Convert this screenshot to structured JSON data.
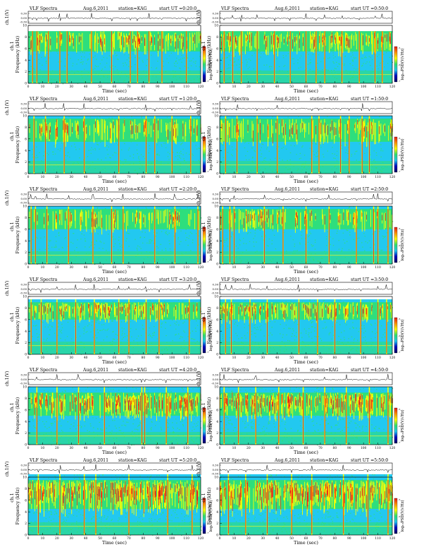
{
  "chart_data": {
    "type": "heatmap",
    "colors": {
      "background": "#22c8f0",
      "low": "#30e070",
      "mid": "#ffff00",
      "high": "#e81818",
      "colorbar_stops": [
        "#e81818",
        "#ff9000",
        "#ffff00",
        "#30e070",
        "#22c8f0",
        "#0000c0",
        "#000060"
      ]
    },
    "panels": [
      {
        "title": "VLF Spectra",
        "date": "Aug.6,2011",
        "station": "station=KAG",
        "start": "start UT =0:20:0",
        "ch_label": "ch.1(V)",
        "ch_ticks": [
          "0.30",
          "0.00",
          "-0.30"
        ],
        "xlabel": "Time (sec)",
        "ylabel": "Frequency (kHz)",
        "ylabel_ch": "ch.1",
        "colorbar_label": "log₁₀PSD(V/√Hz)",
        "colorbar_ticks": [
          "-5",
          "-6",
          "-7"
        ],
        "xlim": [
          0,
          120
        ],
        "ylim": [
          0,
          10
        ],
        "fmax_khz": 9.0,
        "xticks": [
          "0",
          "10",
          "20",
          "30",
          "40",
          "50",
          "60",
          "70",
          "80",
          "90",
          "100",
          "110",
          "120"
        ],
        "yticks": [
          "0",
          "2",
          "4",
          "6",
          "8",
          "10"
        ],
        "activity": 0.55,
        "noise": 0.5,
        "band_khz": [
          5.5,
          9.0
        ],
        "spikes_sec": [
          3,
          6,
          14,
          22,
          27,
          44,
          58,
          71,
          76,
          84,
          93,
          110
        ],
        "seed": 11
      },
      {
        "title": "VLF Spectra",
        "date": "Aug.6,2011",
        "station": "station=KAG",
        "start": "start UT =0:50:0",
        "ch_label": "ch.1(V)",
        "ch_ticks": [
          "0.30",
          "0.00",
          "-0.30"
        ],
        "xlabel": "Time (sec)",
        "ylabel": "Frequency (kHz)",
        "ylabel_ch": "ch.1",
        "colorbar_label": "log₁₀PSD(V/√Hz)",
        "colorbar_ticks": [
          "-5",
          "-6",
          "-7"
        ],
        "xlim": [
          0,
          120
        ],
        "ylim": [
          0,
          10
        ],
        "fmax_khz": 9.0,
        "xticks": [
          "0",
          "10",
          "20",
          "30",
          "40",
          "50",
          "60",
          "70",
          "80",
          "90",
          "100",
          "110",
          "120"
        ],
        "yticks": [
          "0",
          "2",
          "4",
          "6",
          "8",
          "10"
        ],
        "activity": 0.58,
        "noise": 0.5,
        "band_khz": [
          5.5,
          9.0
        ],
        "spikes_sec": [
          3,
          9,
          15,
          26,
          38,
          49,
          60,
          67,
          73,
          85,
          97,
          108,
          113
        ],
        "seed": 23
      },
      {
        "title": "VLF Spectra",
        "date": "Aug.6,2011",
        "station": "station=KAG",
        "start": "start UT =1:20:0",
        "ch_label": "ch.1(V)",
        "ch_ticks": [
          "0.30",
          "0.00",
          "-0.30"
        ],
        "xlabel": "Time (sec)",
        "ylabel": "Frequency (kHz)",
        "ylabel_ch": "ch.1",
        "colorbar_label": "log₁₀PSD(V/√Hz)",
        "colorbar_ticks": [
          "-5",
          "-6",
          "-7"
        ],
        "xlim": [
          0,
          120
        ],
        "ylim": [
          0,
          10
        ],
        "fmax_khz": 10.0,
        "xticks": [
          "0",
          "10",
          "20",
          "30",
          "40",
          "50",
          "60",
          "70",
          "80",
          "90",
          "100",
          "110",
          "120"
        ],
        "yticks": [
          "0",
          "2",
          "4",
          "6",
          "8",
          "10"
        ],
        "activity": 0.45,
        "noise": 0.52,
        "band_khz": [
          5.5,
          9.5
        ],
        "spikes_sec": [
          4,
          12,
          25,
          39,
          63,
          82,
          88,
          100,
          113
        ],
        "seed": 37
      },
      {
        "title": "VLF Spectra",
        "date": "Aug.6,2011",
        "station": "station=KAG",
        "start": "start UT =1:50:0",
        "ch_label": "ch.1(V)",
        "ch_ticks": [
          "0.30",
          "0.00",
          "-0.30"
        ],
        "xlabel": "Time (sec)",
        "ylabel": "Frequency (kHz)",
        "ylabel_ch": "ch.1",
        "colorbar_label": "log₁₀PSD(V/√Hz)",
        "colorbar_ticks": [
          "-5",
          "-6",
          "-7"
        ],
        "xlim": [
          0,
          120
        ],
        "ylim": [
          0,
          10
        ],
        "fmax_khz": 10.0,
        "xticks": [
          "0",
          "10",
          "20",
          "30",
          "40",
          "50",
          "60",
          "70",
          "80",
          "90",
          "100",
          "110",
          "120"
        ],
        "yticks": [
          "0",
          "2",
          "4",
          "6",
          "8",
          "10"
        ],
        "activity": 0.48,
        "noise": 0.52,
        "band_khz": [
          5.5,
          9.5
        ],
        "spikes_sec": [
          4,
          12,
          26,
          40,
          64,
          69,
          84,
          90,
          99,
          104
        ],
        "seed": 41
      },
      {
        "title": "VLF Spectra",
        "date": "Aug.6,2011",
        "station": "station=KAG",
        "start": "start UT =2:20:0",
        "ch_label": "ch.1(V)",
        "ch_ticks": [
          "0.30",
          "0.00",
          "-0.30"
        ],
        "xlabel": "Time (sec)",
        "ylabel": "Frequency (kHz)",
        "ylabel_ch": "ch.1",
        "colorbar_label": "log₁₀PSD(V/√Hz)",
        "colorbar_ticks": [
          "-5",
          "-6",
          "-7"
        ],
        "xlim": [
          0,
          120
        ],
        "ylim": [
          0,
          10
        ],
        "fmax_khz": 10.0,
        "xticks": [
          "0",
          "10",
          "20",
          "30",
          "40",
          "50",
          "60",
          "70",
          "80",
          "90",
          "100",
          "110",
          "120"
        ],
        "yticks": [
          "0",
          "2",
          "4",
          "6",
          "8",
          "10"
        ],
        "activity": 0.4,
        "noise": 0.45,
        "band_khz": [
          6.0,
          9.5
        ],
        "spikes_sec": [
          2,
          5,
          13,
          28,
          45,
          58,
          66,
          88,
          102,
          118
        ],
        "seed": 53
      },
      {
        "title": "VLF Spectra",
        "date": "Aug.6,2011",
        "station": "station=KAG",
        "start": "start UT =2:50:0",
        "ch_label": "ch.1(V)",
        "ch_ticks": [
          "0.30",
          "0.00",
          "-0.30"
        ],
        "xlabel": "Time (sec)",
        "ylabel": "Frequency (kHz)",
        "ylabel_ch": "ch.1",
        "colorbar_label": "log₁₀PSD(V/√Hz)",
        "colorbar_ticks": [
          "-5",
          "-6",
          "-7"
        ],
        "xlim": [
          0,
          120
        ],
        "ylim": [
          0,
          10
        ],
        "fmax_khz": 10.0,
        "xticks": [
          "0",
          "10",
          "20",
          "30",
          "40",
          "50",
          "60",
          "70",
          "80",
          "90",
          "100",
          "110",
          "120"
        ],
        "yticks": [
          "0",
          "2",
          "4",
          "6",
          "8",
          "10"
        ],
        "activity": 0.42,
        "noise": 0.45,
        "band_khz": [
          6.0,
          9.5
        ],
        "spikes_sec": [
          2,
          7,
          10,
          31,
          44,
          60,
          76,
          95,
          107,
          110,
          117
        ],
        "seed": 67
      },
      {
        "title": "VLF Spectra",
        "date": "Aug.6,2011",
        "station": "station=KAG",
        "start": "start UT =3:20:0",
        "ch_label": "ch.1(V)",
        "ch_ticks": [
          "0.30",
          "0.00",
          "-0.30"
        ],
        "xlabel": "Time (sec)",
        "ylabel": "Frequency (kHz)",
        "ylabel_ch": "ch.1",
        "colorbar_label": "log₁₀PSD(V/√Hz)",
        "colorbar_ticks": [
          "-5",
          "-6",
          "-7"
        ],
        "xlim": [
          0,
          120
        ],
        "ylim": [
          0,
          10
        ],
        "fmax_khz": 9.5,
        "xticks": [
          "0",
          "10",
          "20",
          "30",
          "40",
          "50",
          "60",
          "70",
          "80",
          "90",
          "100",
          "110",
          "120"
        ],
        "yticks": [
          "0",
          "2",
          "4",
          "6",
          "8",
          "10"
        ],
        "activity": 0.62,
        "noise": 0.55,
        "band_khz": [
          6.0,
          9.0
        ],
        "spikes_sec": [
          2,
          9,
          20,
          33,
          46,
          63,
          70,
          82,
          91,
          112
        ],
        "seed": 79
      },
      {
        "title": "VLF Spectra",
        "date": "Aug.6,2011",
        "station": "station=KAG",
        "start": "start UT =3:50:0",
        "ch_label": "ch.1(V)",
        "ch_ticks": [
          "0.30",
          "0.00",
          "-0.30"
        ],
        "xlabel": "Time (sec)",
        "ylabel": "Frequency (kHz)",
        "ylabel_ch": "ch.1",
        "colorbar_label": "log₁₀PSD(V/√Hz)",
        "colorbar_ticks": [
          "-5",
          "-6",
          "-7"
        ],
        "xlim": [
          0,
          120
        ],
        "ylim": [
          0,
          10
        ],
        "fmax_khz": 9.5,
        "xticks": [
          "0",
          "10",
          "20",
          "30",
          "40",
          "50",
          "60",
          "70",
          "80",
          "90",
          "100",
          "110",
          "120"
        ],
        "yticks": [
          "0",
          "2",
          "4",
          "6",
          "8",
          "10"
        ],
        "activity": 0.62,
        "noise": 0.55,
        "band_khz": [
          6.0,
          9.0
        ],
        "spikes_sec": [
          4,
          8,
          21,
          33,
          55,
          68,
          80,
          98,
          110,
          116
        ],
        "seed": 83
      },
      {
        "title": "VLF Spectra",
        "date": "Aug.6,2011",
        "station": "station=KAG",
        "start": "start UT =4:20:0",
        "ch_label": "ch.1(V)",
        "ch_ticks": [
          "0.30",
          "0.00",
          "-0.30"
        ],
        "xlabel": "Time (sec)",
        "ylabel": "Frequency (kHz)",
        "ylabel_ch": "ch.1",
        "colorbar_label": "log₁₀PSD(V/√Hz)",
        "colorbar_ticks": [
          "-5",
          "-6",
          "-7"
        ],
        "xlim": [
          0,
          120
        ],
        "ylim": [
          0,
          10
        ],
        "fmax_khz": 10.0,
        "xticks": [
          "0",
          "10",
          "20",
          "30",
          "40",
          "50",
          "60",
          "70",
          "80",
          "90",
          "100",
          "110",
          "120"
        ],
        "yticks": [
          "0",
          "2",
          "4",
          "6",
          "8",
          "10"
        ],
        "activity": 0.8,
        "noise": 0.62,
        "band_khz": [
          5.0,
          9.0
        ],
        "spikes_sec": [
          6,
          20,
          35,
          53,
          79,
          81,
          96,
          111
        ],
        "seed": 97
      },
      {
        "title": "VLF Spectra",
        "date": "Aug.6,2011",
        "station": "station=KAG",
        "start": "start UT =4:50:0",
        "ch_label": "ch.1(V)",
        "ch_ticks": [
          "0.30",
          "0.00",
          "-0.30"
        ],
        "xlabel": "Time (sec)",
        "ylabel": "Frequency (kHz)",
        "ylabel_ch": "ch.1",
        "colorbar_label": "log₁₀PSD(V/√Hz)",
        "colorbar_ticks": [
          "-5",
          "-6",
          "-7"
        ],
        "xlim": [
          0,
          120
        ],
        "ylim": [
          0,
          10
        ],
        "fmax_khz": 10.0,
        "xticks": [
          "0",
          "10",
          "20",
          "30",
          "40",
          "50",
          "60",
          "70",
          "80",
          "90",
          "100",
          "110",
          "120"
        ],
        "yticks": [
          "0",
          "2",
          "4",
          "6",
          "8",
          "10"
        ],
        "activity": 0.82,
        "noise": 0.62,
        "band_khz": [
          5.0,
          9.0
        ],
        "spikes_sec": [
          3,
          13,
          25,
          41,
          58,
          73,
          88,
          104,
          117
        ],
        "seed": 101
      },
      {
        "title": "VLF Spectra",
        "date": "Aug.6,2011",
        "station": "station=KAG",
        "start": "start UT =5:20:0",
        "ch_label": "ch.1(V)",
        "ch_ticks": [
          "0.30",
          "0.00",
          "-0.30"
        ],
        "xlabel": "Time (sec)",
        "ylabel": "Frequency (kHz)",
        "ylabel_ch": "ch.1",
        "colorbar_label": "log₁₀PSD(V/√Hz)",
        "colorbar_ticks": [
          "-5",
          "-6",
          "-7"
        ],
        "xlim": [
          0,
          120
        ],
        "ylim": [
          0,
          10
        ],
        "fmax_khz": 10.5,
        "xticks": [
          "0",
          "10",
          "20",
          "30",
          "40",
          "50",
          "60",
          "70",
          "80",
          "90",
          "100",
          "110",
          "120"
        ],
        "yticks": [
          "0",
          "2",
          "4",
          "6",
          "8",
          "10"
        ],
        "activity": 0.95,
        "noise": 0.75,
        "band_khz": [
          4.5,
          9.5
        ],
        "spikes_sec": [
          7,
          22,
          39,
          47,
          70,
          97,
          114
        ],
        "seed": 113
      },
      {
        "title": "VLF Spectra",
        "date": "Aug.6,2011",
        "station": "station=KAG",
        "start": "start UT =5:50:0",
        "ch_label": "ch.1(V)",
        "ch_ticks": [
          "0.30",
          "0.00",
          "-0.30"
        ],
        "xlabel": "Time (sec)",
        "ylabel": "Frequency (kHz)",
        "ylabel_ch": "ch.1",
        "colorbar_label": "log₁₀PSD(V/√Hz)",
        "colorbar_ticks": [
          "-5",
          "-6",
          "-7"
        ],
        "xlim": [
          0,
          120
        ],
        "ylim": [
          0,
          10
        ],
        "fmax_khz": 10.5,
        "xticks": [
          "0",
          "10",
          "20",
          "30",
          "40",
          "50",
          "60",
          "70",
          "80",
          "90",
          "100",
          "110",
          "120"
        ],
        "yticks": [
          "0",
          "2",
          "4",
          "6",
          "8",
          "10"
        ],
        "activity": 0.95,
        "noise": 0.75,
        "band_khz": [
          4.5,
          9.5
        ],
        "spikes_sec": [
          6,
          18,
          33,
          50,
          64,
          86,
          103,
          117
        ],
        "seed": 127
      }
    ]
  }
}
